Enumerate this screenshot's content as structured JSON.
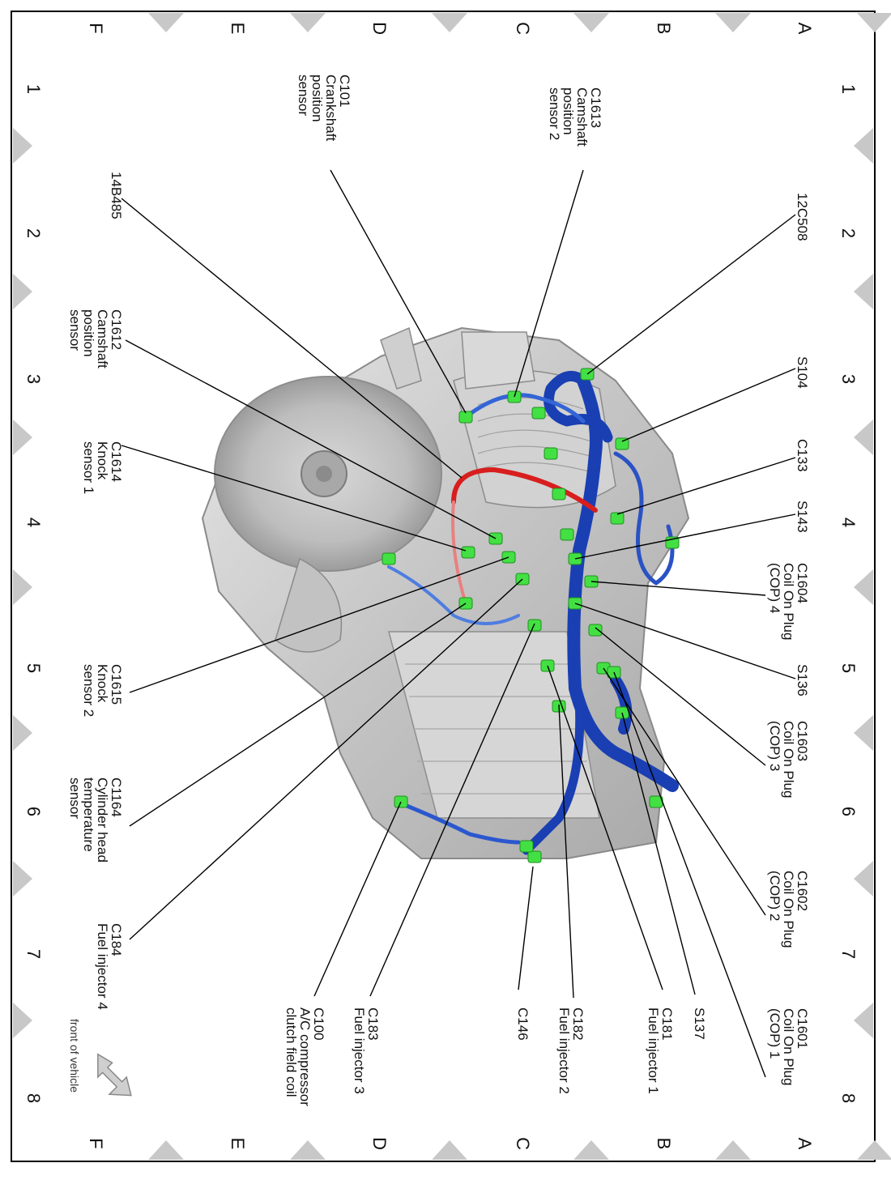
{
  "grid": {
    "rows": [
      "A",
      "B",
      "C",
      "D",
      "E",
      "F"
    ],
    "columns": [
      "1",
      "2",
      "3",
      "4",
      "5",
      "6",
      "7",
      "8"
    ]
  },
  "labels": [
    {
      "id": "c1613",
      "lines": [
        "C1613",
        "Camshaft",
        "position",
        "sensor 2"
      ]
    },
    {
      "id": "c101",
      "lines": [
        "C101",
        "Crankshaft",
        "position",
        "sensor"
      ]
    },
    {
      "id": "12c508",
      "lines": [
        "12C508"
      ]
    },
    {
      "id": "14b485",
      "lines": [
        "14B485"
      ]
    },
    {
      "id": "c1612",
      "lines": [
        "C1612",
        "Camshaft",
        "position",
        "sensor"
      ]
    },
    {
      "id": "s104",
      "lines": [
        "S104"
      ]
    },
    {
      "id": "c1614",
      "lines": [
        "C1614",
        "Knock",
        "sensor 1"
      ]
    },
    {
      "id": "c133",
      "lines": [
        "C133"
      ]
    },
    {
      "id": "s143",
      "lines": [
        "S143"
      ]
    },
    {
      "id": "c1604",
      "lines": [
        "C1604",
        "Coil On Plug",
        "(COP) 4"
      ]
    },
    {
      "id": "c1615",
      "lines": [
        "C1615",
        "Knock",
        "sensor 2"
      ]
    },
    {
      "id": "s136",
      "lines": [
        "S136"
      ]
    },
    {
      "id": "c1603",
      "lines": [
        "C1603",
        "Coil On Plug",
        "(COP) 3"
      ]
    },
    {
      "id": "c1164",
      "lines": [
        "C1164",
        "Cylinder head",
        "temperature",
        "sensor"
      ]
    },
    {
      "id": "c1602",
      "lines": [
        "C1602",
        "Coil On Plug",
        "(COP) 2"
      ]
    },
    {
      "id": "c184",
      "lines": [
        "C184",
        "Fuel injector 4"
      ]
    },
    {
      "id": "c1601",
      "lines": [
        "C1601",
        "Coil On Plug",
        "(COP) 1"
      ]
    },
    {
      "id": "s137",
      "lines": [
        "S137"
      ]
    },
    {
      "id": "c181",
      "lines": [
        "C181",
        "Fuel injector 1"
      ]
    },
    {
      "id": "c182",
      "lines": [
        "C182",
        "Fuel injector 2"
      ]
    },
    {
      "id": "c146",
      "lines": [
        "C146"
      ]
    },
    {
      "id": "c183",
      "lines": [
        "C183",
        "Fuel injector 3"
      ]
    },
    {
      "id": "c100",
      "lines": [
        "C100",
        "A/C compressor",
        "clutch field coil"
      ]
    }
  ],
  "front_of_vehicle": "front of vehicle",
  "colors": {
    "harness": "#1a3fb3",
    "harness_light": "#4f7de0",
    "connector": "#43e043",
    "red_harness": "#d81e1e",
    "engine": "#c9c9c9",
    "marker": "#c8c8c8"
  }
}
